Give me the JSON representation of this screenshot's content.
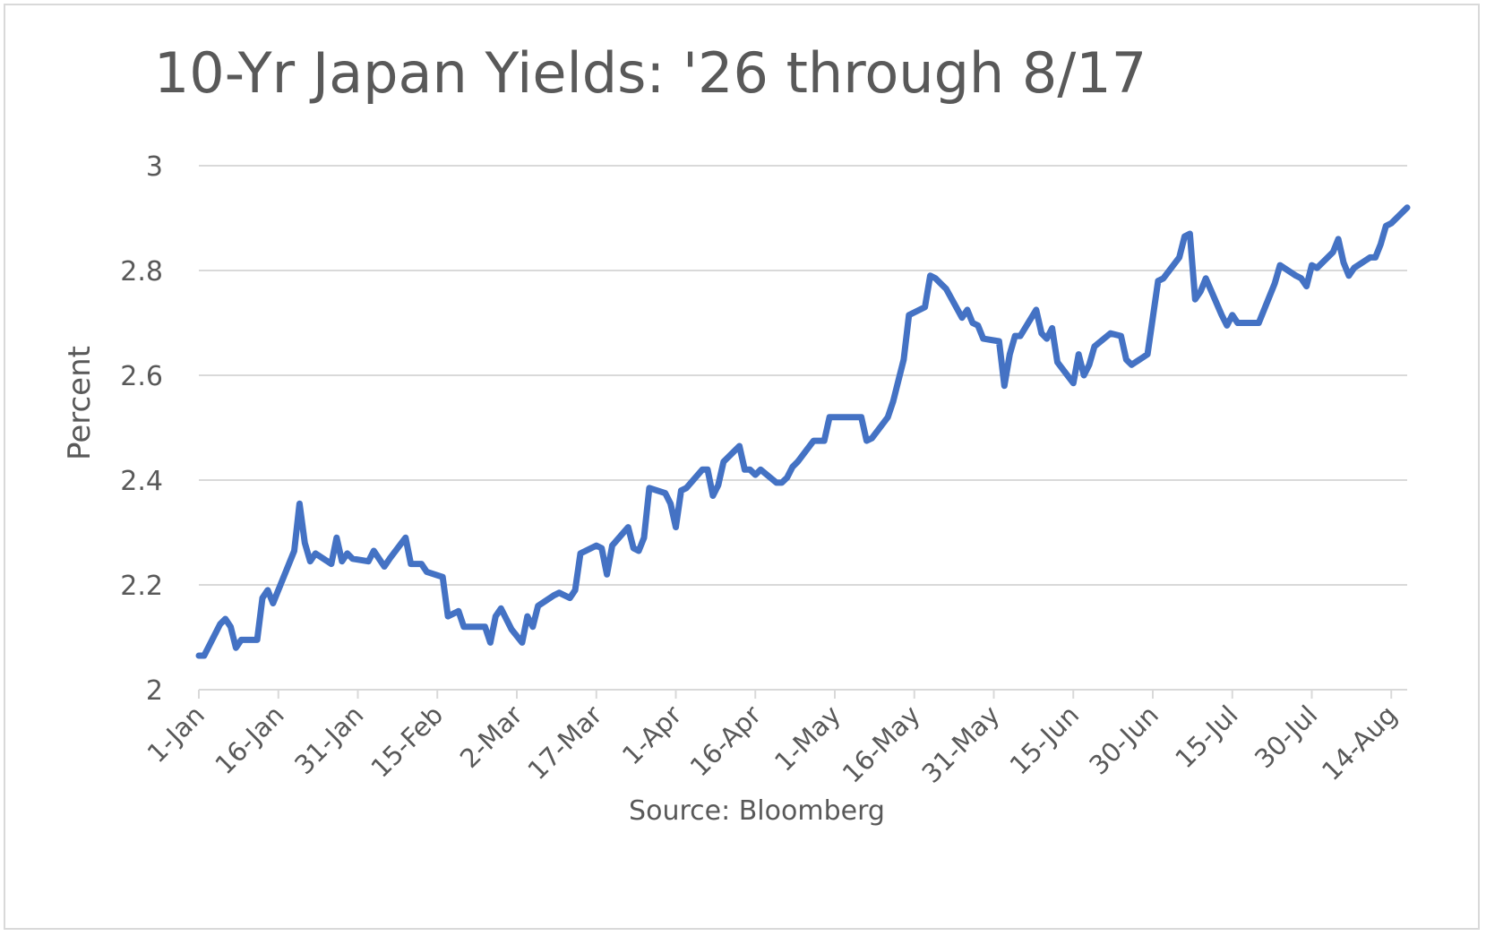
{
  "chart_data": {
    "type": "line",
    "title": "10-Yr Japan Yields: '26 through 8/17",
    "xlabel": "Source: Bloomberg",
    "ylabel": "Percent",
    "ylim": [
      2,
      3
    ],
    "yticks": [
      "2",
      "2.2",
      "2.4",
      "2.6",
      "2.8",
      "3"
    ],
    "xlim": [
      "1-Jan",
      "17-Aug"
    ],
    "x_tick_labels": [
      "1-Jan",
      "16-Jan",
      "31-Jan",
      "15-Feb",
      "2-Mar",
      "17-Mar",
      "1-Apr",
      "16-Apr",
      "1-May",
      "16-May",
      "31-May",
      "15-Jun",
      "30-Jun",
      "15-Jul",
      "30-Jul",
      "14-Aug"
    ],
    "grid": true,
    "line_color": "#4472c4",
    "series": [
      {
        "name": "",
        "points": [
          [
            "1-Jan",
            2.065
          ],
          [
            "2-Jan",
            2.065
          ],
          [
            "5-Jan",
            2.125
          ],
          [
            "6-Jan",
            2.135
          ],
          [
            "7-Jan",
            2.12
          ],
          [
            "8-Jan",
            2.08
          ],
          [
            "9-Jan",
            2.095
          ],
          [
            "12-Jan",
            2.095
          ],
          [
            "13-Jan",
            2.175
          ],
          [
            "14-Jan",
            2.19
          ],
          [
            "15-Jan",
            2.165
          ],
          [
            "19-Jan",
            2.265
          ],
          [
            "20-Jan",
            2.355
          ],
          [
            "21-Jan",
            2.28
          ],
          [
            "22-Jan",
            2.245
          ],
          [
            "23-Jan",
            2.26
          ],
          [
            "26-Jan",
            2.24
          ],
          [
            "27-Jan",
            2.29
          ],
          [
            "28-Jan",
            2.245
          ],
          [
            "29-Jan",
            2.26
          ],
          [
            "30-Jan",
            2.25
          ],
          [
            "2-Feb",
            2.245
          ],
          [
            "3-Feb",
            2.265
          ],
          [
            "5-Feb",
            2.235
          ],
          [
            "6-Feb",
            2.25
          ],
          [
            "9-Feb",
            2.29
          ],
          [
            "10-Feb",
            2.24
          ],
          [
            "12-Feb",
            2.24
          ],
          [
            "13-Feb",
            2.225
          ],
          [
            "16-Feb",
            2.215
          ],
          [
            "17-Feb",
            2.14
          ],
          [
            "18-Feb",
            2.145
          ],
          [
            "19-Feb",
            2.15
          ],
          [
            "20-Feb",
            2.12
          ],
          [
            "24-Feb",
            2.12
          ],
          [
            "25-Feb",
            2.09
          ],
          [
            "26-Feb",
            2.14
          ],
          [
            "27-Feb",
            2.155
          ],
          [
            "1-Mar",
            2.115
          ],
          [
            "3-Mar",
            2.09
          ],
          [
            "4-Mar",
            2.14
          ],
          [
            "5-Mar",
            2.12
          ],
          [
            "6-Mar",
            2.16
          ],
          [
            "9-Mar",
            2.18
          ],
          [
            "10-Mar",
            2.185
          ],
          [
            "12-Mar",
            2.175
          ],
          [
            "13-Mar",
            2.19
          ],
          [
            "14-Mar",
            2.26
          ],
          [
            "17-Mar",
            2.275
          ],
          [
            "18-Mar",
            2.27
          ],
          [
            "19-Mar",
            2.22
          ],
          [
            "20-Mar",
            2.275
          ],
          [
            "23-Mar",
            2.31
          ],
          [
            "24-Mar",
            2.27
          ],
          [
            "25-Mar",
            2.265
          ],
          [
            "26-Mar",
            2.29
          ],
          [
            "27-Mar",
            2.385
          ],
          [
            "30-Mar",
            2.375
          ],
          [
            "31-Mar",
            2.355
          ],
          [
            "1-Apr",
            2.31
          ],
          [
            "2-Apr",
            2.38
          ],
          [
            "3-Apr",
            2.385
          ],
          [
            "6-Apr",
            2.42
          ],
          [
            "7-Apr",
            2.42
          ],
          [
            "8-Apr",
            2.37
          ],
          [
            "9-Apr",
            2.39
          ],
          [
            "10-Apr",
            2.435
          ],
          [
            "13-Apr",
            2.465
          ],
          [
            "14-Apr",
            2.42
          ],
          [
            "15-Apr",
            2.42
          ],
          [
            "16-Apr",
            2.41
          ],
          [
            "17-Apr",
            2.42
          ],
          [
            "20-Apr",
            2.395
          ],
          [
            "21-Apr",
            2.395
          ],
          [
            "22-Apr",
            2.405
          ],
          [
            "23-Apr",
            2.425
          ],
          [
            "24-Apr",
            2.435
          ],
          [
            "27-Apr",
            2.475
          ],
          [
            "28-Apr",
            2.475
          ],
          [
            "29-Apr",
            2.475
          ],
          [
            "30-Apr",
            2.52
          ],
          [
            "1-May",
            2.52
          ],
          [
            "5-May",
            2.52
          ],
          [
            "6-May",
            2.52
          ],
          [
            "7-May",
            2.475
          ],
          [
            "8-May",
            2.48
          ],
          [
            "11-May",
            2.52
          ],
          [
            "12-May",
            2.55
          ],
          [
            "13-May",
            2.59
          ],
          [
            "14-May",
            2.63
          ],
          [
            "15-May",
            2.715
          ],
          [
            "18-May",
            2.73
          ],
          [
            "19-May",
            2.79
          ],
          [
            "20-May",
            2.785
          ],
          [
            "21-May",
            2.775
          ],
          [
            "22-May",
            2.765
          ],
          [
            "25-May",
            2.71
          ],
          [
            "26-May",
            2.725
          ],
          [
            "27-May",
            2.7
          ],
          [
            "28-May",
            2.695
          ],
          [
            "29-May",
            2.67
          ],
          [
            "1-Jun",
            2.665
          ],
          [
            "2-Jun",
            2.58
          ],
          [
            "3-Jun",
            2.64
          ],
          [
            "4-Jun",
            2.675
          ],
          [
            "5-Jun",
            2.675
          ],
          [
            "8-Jun",
            2.725
          ],
          [
            "9-Jun",
            2.68
          ],
          [
            "10-Jun",
            2.67
          ],
          [
            "11-Jun",
            2.69
          ],
          [
            "12-Jun",
            2.625
          ],
          [
            "15-Jun",
            2.585
          ],
          [
            "16-Jun",
            2.64
          ],
          [
            "17-Jun",
            2.6
          ],
          [
            "18-Jun",
            2.62
          ],
          [
            "19-Jun",
            2.655
          ],
          [
            "22-Jun",
            2.68
          ],
          [
            "24-Jun",
            2.675
          ],
          [
            "25-Jun",
            2.63
          ],
          [
            "26-Jun",
            2.62
          ],
          [
            "29-Jun",
            2.64
          ],
          [
            "30-Jun",
            2.71
          ],
          [
            "1-Jul",
            2.78
          ],
          [
            "2-Jul",
            2.785
          ],
          [
            "5-Jul",
            2.825
          ],
          [
            "6-Jul",
            2.865
          ],
          [
            "7-Jul",
            2.87
          ],
          [
            "8-Jul",
            2.745
          ],
          [
            "9-Jul",
            2.76
          ],
          [
            "10-Jul",
            2.785
          ],
          [
            "13-Jul",
            2.715
          ],
          [
            "14-Jul",
            2.695
          ],
          [
            "15-Jul",
            2.715
          ],
          [
            "16-Jul",
            2.7
          ],
          [
            "20-Jul",
            2.7
          ],
          [
            "23-Jul",
            2.775
          ],
          [
            "24-Jul",
            2.81
          ],
          [
            "27-Jul",
            2.79
          ],
          [
            "28-Jul",
            2.785
          ],
          [
            "29-Jul",
            2.77
          ],
          [
            "30-Jul",
            2.81
          ],
          [
            "31-Jul",
            2.805
          ],
          [
            "3-Aug",
            2.835
          ],
          [
            "4-Aug",
            2.86
          ],
          [
            "5-Aug",
            2.815
          ],
          [
            "6-Aug",
            2.79
          ],
          [
            "7-Aug",
            2.805
          ],
          [
            "10-Aug",
            2.825
          ],
          [
            "11-Aug",
            2.825
          ],
          [
            "12-Aug",
            2.85
          ],
          [
            "13-Aug",
            2.885
          ],
          [
            "14-Aug",
            2.89
          ],
          [
            "17-Aug",
            2.92
          ]
        ]
      }
    ]
  }
}
